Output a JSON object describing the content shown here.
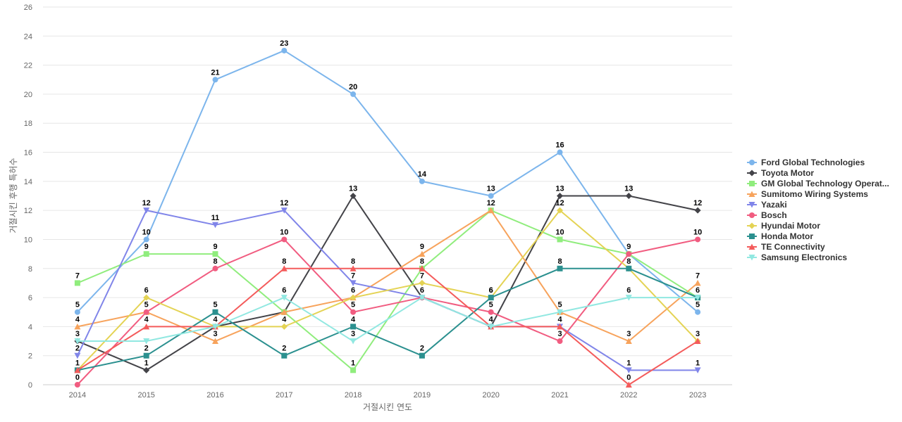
{
  "chart_data": {
    "type": "line",
    "xlabel": "거절시킨 연도",
    "ylabel": "거절시킨 후행 특허수",
    "ylim": [
      0,
      26
    ],
    "ytick_step": 2,
    "grid": true,
    "legend_position": "right",
    "categories": [
      "2014",
      "2015",
      "2016",
      "2017",
      "2018",
      "2019",
      "2020",
      "2021",
      "2022",
      "2023"
    ],
    "series": [
      {
        "name": "Ford Global Technologies",
        "color": "#7cb5ec",
        "marker": "circle",
        "values": [
          5,
          10,
          21,
          23,
          20,
          14,
          13,
          16,
          9,
          5
        ],
        "labels": [
          5,
          10,
          21,
          23,
          20,
          14,
          13,
          16,
          9,
          5
        ]
      },
      {
        "name": "Toyota Motor",
        "color": "#434348",
        "marker": "diamond",
        "values": [
          3,
          1,
          4,
          5,
          13,
          6,
          4,
          13,
          13,
          12
        ],
        "labels": [
          3,
          1,
          null,
          null,
          13,
          null,
          null,
          13,
          13,
          12
        ]
      },
      {
        "name": "GM Global Technology Operat...",
        "color": "#90ed7d",
        "marker": "square",
        "values": [
          7,
          9,
          9,
          5,
          1,
          8,
          12,
          10,
          9,
          6
        ],
        "labels": [
          7,
          9,
          9,
          null,
          1,
          null,
          12,
          10,
          null,
          null
        ]
      },
      {
        "name": "Sumitomo Wiring Systems",
        "color": "#f7a35c",
        "marker": "triangle",
        "values": [
          4,
          5,
          3,
          5,
          6,
          9,
          12,
          5,
          3,
          7
        ],
        "labels": [
          4,
          null,
          3,
          null,
          null,
          9,
          null,
          null,
          3,
          7
        ]
      },
      {
        "name": "Yazaki",
        "color": "#8085e9",
        "marker": "triangle-down",
        "values": [
          2,
          12,
          11,
          12,
          7,
          6,
          4,
          4,
          1,
          1
        ],
        "labels": [
          2,
          12,
          11,
          12,
          7,
          null,
          null,
          4,
          1,
          1
        ]
      },
      {
        "name": "Bosch",
        "color": "#f15c80",
        "marker": "circle",
        "values": [
          0,
          5,
          8,
          10,
          5,
          6,
          5,
          3,
          9,
          10
        ],
        "labels": [
          0,
          5,
          8,
          10,
          5,
          null,
          5,
          3,
          null,
          10
        ]
      },
      {
        "name": "Hyundai Motor",
        "color": "#e4d354",
        "marker": "diamond",
        "values": [
          1,
          6,
          4,
          4,
          6,
          7,
          6,
          12,
          8,
          3
        ],
        "labels": [
          null,
          6,
          null,
          4,
          6,
          7,
          6,
          12,
          null,
          3
        ]
      },
      {
        "name": "Honda Motor",
        "color": "#2b908f",
        "marker": "square",
        "values": [
          1,
          2,
          5,
          2,
          4,
          2,
          6,
          8,
          8,
          6
        ],
        "labels": [
          1,
          2,
          5,
          2,
          4,
          2,
          6,
          8,
          8,
          6
        ]
      },
      {
        "name": "TE Connectivity",
        "color": "#f45b5b",
        "marker": "triangle",
        "values": [
          1,
          4,
          4,
          8,
          8,
          8,
          4,
          4,
          0,
          3
        ],
        "labels": [
          null,
          4,
          4,
          8,
          8,
          8,
          null,
          null,
          0,
          null
        ]
      },
      {
        "name": "Samsung Electronics",
        "color": "#91e8e1",
        "marker": "triangle-down",
        "values": [
          3,
          3,
          4,
          6,
          3,
          6,
          4,
          5,
          6,
          6
        ],
        "labels": [
          null,
          null,
          null,
          6,
          3,
          6,
          4,
          5,
          6,
          null
        ]
      }
    ]
  }
}
